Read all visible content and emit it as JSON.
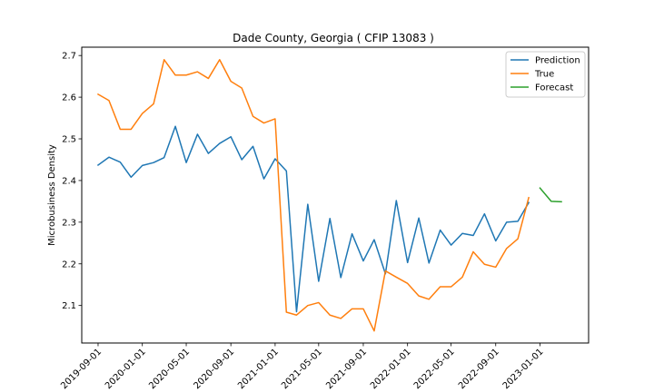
{
  "chart_data": {
    "type": "line",
    "title": "Dade County, Georgia ( CFIP 13083 )",
    "xlabel": "",
    "ylabel": "Microbusiness Density",
    "ylim": [
      2.01,
      2.72
    ],
    "yticks": [
      2.1,
      2.2,
      2.3,
      2.4,
      2.5,
      2.6,
      2.7
    ],
    "xlim": [
      "2019-07-18",
      "2023-05-15"
    ],
    "xticks": [
      "2019-09-01",
      "2020-01-01",
      "2020-05-01",
      "2020-09-01",
      "2021-01-01",
      "2021-05-01",
      "2021-09-01",
      "2022-01-01",
      "2022-05-01",
      "2022-09-01",
      "2023-01-01"
    ],
    "legend_position": "top-right",
    "grid": false,
    "series": [
      {
        "name": "Prediction",
        "color": "#1f77b4",
        "x": [
          "2019-09-01",
          "2019-10-01",
          "2019-11-01",
          "2019-12-01",
          "2020-01-01",
          "2020-02-01",
          "2020-03-01",
          "2020-04-01",
          "2020-05-01",
          "2020-06-01",
          "2020-07-01",
          "2020-08-01",
          "2020-09-01",
          "2020-10-01",
          "2020-11-01",
          "2020-12-01",
          "2021-01-01",
          "2021-02-01",
          "2021-03-01",
          "2021-04-01",
          "2021-05-01",
          "2021-06-01",
          "2021-07-01",
          "2021-08-01",
          "2021-09-01",
          "2021-10-01",
          "2021-11-01",
          "2021-12-01",
          "2022-01-01",
          "2022-02-01",
          "2022-03-01",
          "2022-04-01",
          "2022-05-01",
          "2022-06-01",
          "2022-07-01",
          "2022-08-01",
          "2022-09-01",
          "2022-10-01",
          "2022-11-01",
          "2022-12-01"
        ],
        "y": [
          2.437,
          2.456,
          2.444,
          2.408,
          2.436,
          2.443,
          2.455,
          2.53,
          2.443,
          2.511,
          2.465,
          2.489,
          2.505,
          2.45,
          2.482,
          2.404,
          2.452,
          2.423,
          2.085,
          2.343,
          2.158,
          2.309,
          2.167,
          2.272,
          2.207,
          2.258,
          2.176,
          2.352,
          2.203,
          2.31,
          2.202,
          2.281,
          2.245,
          2.273,
          2.268,
          2.32,
          2.255,
          2.3,
          2.302,
          2.347
        ]
      },
      {
        "name": "True",
        "color": "#ff7f0e",
        "x": [
          "2019-09-01",
          "2019-10-01",
          "2019-11-01",
          "2019-12-01",
          "2020-01-01",
          "2020-02-01",
          "2020-03-01",
          "2020-04-01",
          "2020-05-01",
          "2020-06-01",
          "2020-07-01",
          "2020-08-01",
          "2020-09-01",
          "2020-10-01",
          "2020-11-01",
          "2020-12-01",
          "2021-01-01",
          "2021-02-01",
          "2021-03-01",
          "2021-04-01",
          "2021-05-01",
          "2021-06-01",
          "2021-07-01",
          "2021-08-01",
          "2021-09-01",
          "2021-10-01",
          "2021-11-01",
          "2021-12-01",
          "2022-01-01",
          "2022-02-01",
          "2022-03-01",
          "2022-04-01",
          "2022-05-01",
          "2022-06-01",
          "2022-07-01",
          "2022-08-01",
          "2022-09-01",
          "2022-10-01",
          "2022-11-01",
          "2022-12-01"
        ],
        "y": [
          2.607,
          2.592,
          2.523,
          2.523,
          2.561,
          2.584,
          2.69,
          2.653,
          2.653,
          2.661,
          2.645,
          2.69,
          2.638,
          2.622,
          2.554,
          2.538,
          2.548,
          2.084,
          2.077,
          2.1,
          2.107,
          2.077,
          2.069,
          2.092,
          2.092,
          2.039,
          2.183,
          2.168,
          2.153,
          2.123,
          2.115,
          2.145,
          2.145,
          2.168,
          2.229,
          2.199,
          2.192,
          2.237,
          2.26,
          2.359
        ]
      },
      {
        "name": "Forecast",
        "color": "#2ca02c",
        "x": [
          "2023-01-01",
          "2023-02-01",
          "2023-03-01"
        ],
        "y": [
          2.382,
          2.35,
          2.349
        ]
      }
    ]
  }
}
